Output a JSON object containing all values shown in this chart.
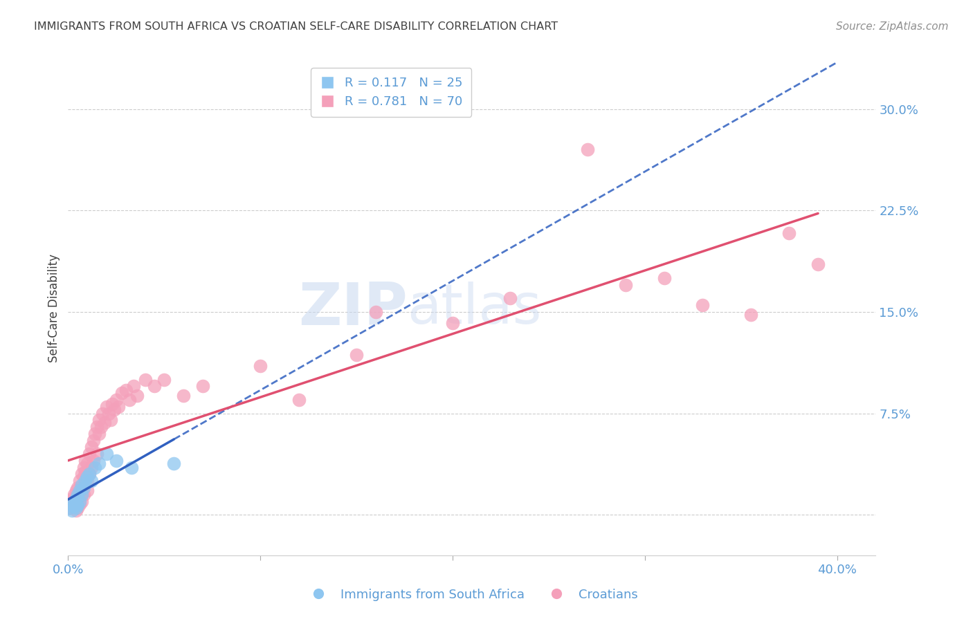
{
  "title": "IMMIGRANTS FROM SOUTH AFRICA VS CROATIAN SELF-CARE DISABILITY CORRELATION CHART",
  "source": "Source: ZipAtlas.com",
  "ylabel": "Self-Care Disability",
  "legend_label1": "Immigrants from South Africa",
  "legend_label2": "Croatians",
  "legend_r1": "R = 0.117",
  "legend_n1": "N = 25",
  "legend_r2": "R = 0.781",
  "legend_n2": "N = 70",
  "ytick_vals": [
    0.0,
    0.075,
    0.15,
    0.225,
    0.3
  ],
  "ytick_labels": [
    "",
    "7.5%",
    "15.0%",
    "22.5%",
    "30.0%"
  ],
  "xtick_vals": [
    0.0,
    0.1,
    0.2,
    0.3,
    0.4
  ],
  "xtick_labels": [
    "0.0%",
    "",
    "",
    "",
    "40.0%"
  ],
  "xlim": [
    0.0,
    0.42
  ],
  "ylim": [
    -0.03,
    0.335
  ],
  "color_blue": "#8EC6F0",
  "color_pink": "#F4A0BA",
  "color_blue_line": "#3060C0",
  "color_pink_line": "#E05070",
  "color_axis_labels": "#5B9BD5",
  "title_color": "#404040",
  "source_color": "#909090",
  "background_color": "#FFFFFF",
  "watermark_color": "#C8D8F0",
  "scatter_blue_x": [
    0.001,
    0.002,
    0.002,
    0.003,
    0.003,
    0.004,
    0.004,
    0.004,
    0.005,
    0.005,
    0.006,
    0.006,
    0.007,
    0.007,
    0.008,
    0.009,
    0.01,
    0.011,
    0.012,
    0.014,
    0.016,
    0.02,
    0.025,
    0.033,
    0.055
  ],
  "scatter_blue_y": [
    0.005,
    0.008,
    0.003,
    0.01,
    0.006,
    0.012,
    0.005,
    0.008,
    0.015,
    0.007,
    0.018,
    0.01,
    0.022,
    0.015,
    0.02,
    0.025,
    0.028,
    0.03,
    0.025,
    0.035,
    0.038,
    0.045,
    0.04,
    0.035,
    0.038
  ],
  "scatter_pink_x": [
    0.001,
    0.001,
    0.002,
    0.002,
    0.003,
    0.003,
    0.004,
    0.004,
    0.004,
    0.005,
    0.005,
    0.005,
    0.006,
    0.006,
    0.006,
    0.007,
    0.007,
    0.007,
    0.008,
    0.008,
    0.008,
    0.009,
    0.009,
    0.01,
    0.01,
    0.01,
    0.011,
    0.011,
    0.012,
    0.012,
    0.013,
    0.013,
    0.014,
    0.015,
    0.015,
    0.016,
    0.016,
    0.017,
    0.018,
    0.019,
    0.02,
    0.021,
    0.022,
    0.023,
    0.024,
    0.025,
    0.026,
    0.028,
    0.03,
    0.032,
    0.034,
    0.036,
    0.04,
    0.045,
    0.05,
    0.06,
    0.07,
    0.1,
    0.12,
    0.15,
    0.16,
    0.2,
    0.23,
    0.27,
    0.29,
    0.31,
    0.33,
    0.355,
    0.375,
    0.39
  ],
  "scatter_pink_y": [
    0.005,
    0.01,
    0.007,
    0.012,
    0.01,
    0.015,
    0.008,
    0.018,
    0.003,
    0.02,
    0.012,
    0.005,
    0.025,
    0.015,
    0.008,
    0.03,
    0.02,
    0.01,
    0.028,
    0.035,
    0.015,
    0.032,
    0.04,
    0.025,
    0.038,
    0.018,
    0.045,
    0.03,
    0.05,
    0.035,
    0.055,
    0.04,
    0.06,
    0.065,
    0.045,
    0.06,
    0.07,
    0.065,
    0.075,
    0.068,
    0.08,
    0.075,
    0.07,
    0.082,
    0.078,
    0.085,
    0.08,
    0.09,
    0.092,
    0.085,
    0.095,
    0.088,
    0.1,
    0.095,
    0.1,
    0.088,
    0.095,
    0.11,
    0.085,
    0.118,
    0.15,
    0.142,
    0.16,
    0.27,
    0.17,
    0.175,
    0.155,
    0.148,
    0.208,
    0.185
  ],
  "blue_line_x0": 0.0,
  "blue_line_x_solid_end": 0.058,
  "blue_line_x_dashed_end": 0.4,
  "blue_line_y0": 0.012,
  "blue_line_slope": 0.45,
  "pink_line_x0": 0.0,
  "pink_line_x_end": 0.39,
  "pink_line_y0": 0.005,
  "pink_line_slope": 0.55
}
